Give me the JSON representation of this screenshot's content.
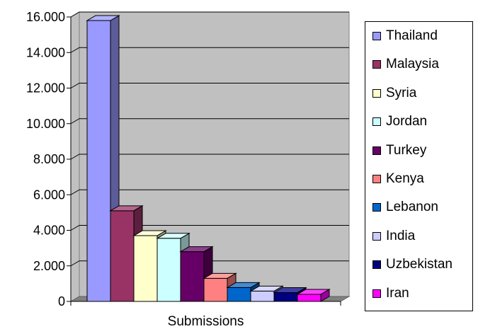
{
  "chart_data": {
    "type": "bar",
    "style": "3d-clustered-column",
    "xlabel": "Submissions",
    "categories": [
      "Submissions"
    ],
    "ylim": [
      0,
      16000
    ],
    "yticks": [
      "0",
      "2.000",
      "4.000",
      "6.000",
      "8.000",
      "10.000",
      "12.000",
      "14.000",
      "16.000"
    ],
    "grid": true,
    "legend_position": "right",
    "series": [
      {
        "name": "Thailand",
        "values": [
          15800
        ],
        "color": "#9999ff"
      },
      {
        "name": "Malaysia",
        "values": [
          5100
        ],
        "color": "#993366"
      },
      {
        "name": "Syria",
        "values": [
          3700
        ],
        "color": "#ffffcc"
      },
      {
        "name": "Jordan",
        "values": [
          3550
        ],
        "color": "#ccffff"
      },
      {
        "name": "Turkey",
        "values": [
          2800
        ],
        "color": "#660066"
      },
      {
        "name": "Kenya",
        "values": [
          1300
        ],
        "color": "#ff8080"
      },
      {
        "name": "Lebanon",
        "values": [
          780
        ],
        "color": "#0066cc"
      },
      {
        "name": "India",
        "values": [
          580
        ],
        "color": "#ccccff"
      },
      {
        "name": "Uzbekistan",
        "values": [
          500
        ],
        "color": "#000080"
      },
      {
        "name": "Iran",
        "values": [
          400
        ],
        "color": "#ff00ff"
      }
    ],
    "colors": {
      "plot_wall": "#c0c0c0",
      "floor": "#808080",
      "gridline": "#000000"
    }
  }
}
